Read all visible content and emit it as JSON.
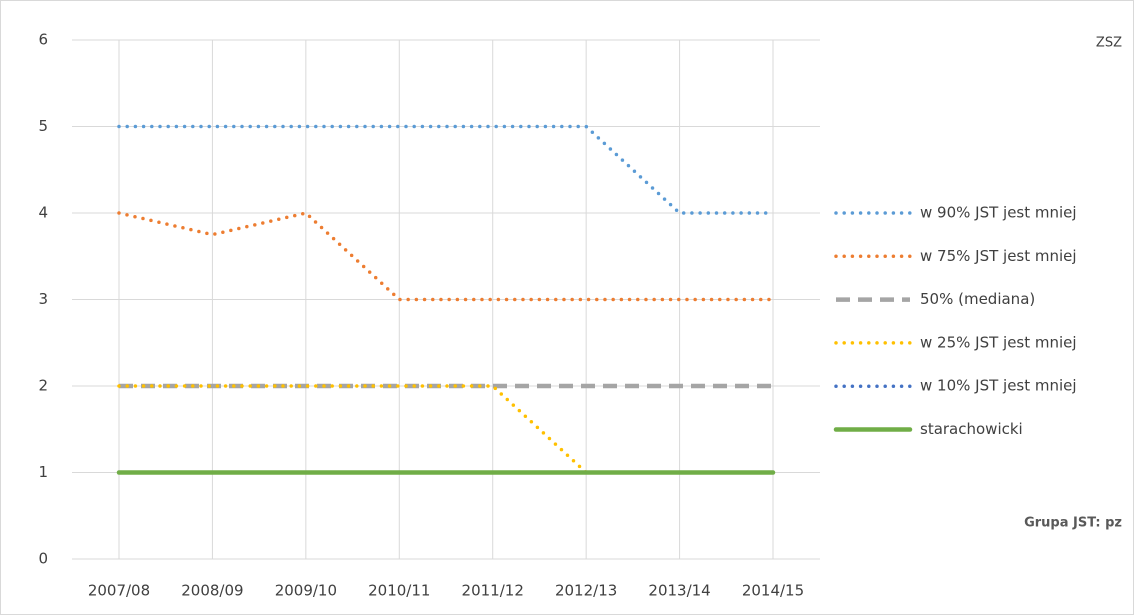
{
  "chart_data": {
    "type": "line",
    "annotations": [
      "ZSZ",
      "Grupa JST: pz"
    ],
    "categories": [
      "2007/08",
      "2008/09",
      "2009/10",
      "2010/11",
      "2011/12",
      "2012/13",
      "2013/14",
      "2014/15"
    ],
    "series": [
      {
        "name": "w 90% JST jest mniej",
        "color": "#5b9bd5",
        "dash": "dot",
        "values": [
          5,
          5,
          5,
          5,
          5,
          5,
          4,
          4
        ]
      },
      {
        "name": "w 75% JST jest mniej",
        "color": "#ed7d31",
        "dash": "dot",
        "values": [
          4,
          3.75,
          4,
          3,
          3,
          3,
          3,
          3
        ]
      },
      {
        "name": "50% (mediana)",
        "color": "#a5a5a5",
        "dash": "dash",
        "values": [
          2,
          2,
          2,
          2,
          2,
          2,
          2,
          2
        ]
      },
      {
        "name": "w 25% JST jest mniej",
        "color": "#ffc000",
        "dash": "dot",
        "values": [
          2,
          2,
          2,
          2,
          2,
          1,
          1,
          1
        ]
      },
      {
        "name": "w 10% JST jest mniej",
        "color": "#4472c4",
        "dash": "dot",
        "values": [
          1,
          1,
          1,
          1,
          1,
          1,
          1,
          1
        ]
      },
      {
        "name": "starachowicki",
        "color": "#70ad47",
        "dash": "solid",
        "values": [
          1,
          1,
          1,
          1,
          1,
          1,
          1,
          1
        ]
      }
    ],
    "ylim": [
      0,
      6
    ],
    "yticks": [
      0,
      1,
      2,
      3,
      4,
      5,
      6
    ],
    "grid": true
  }
}
